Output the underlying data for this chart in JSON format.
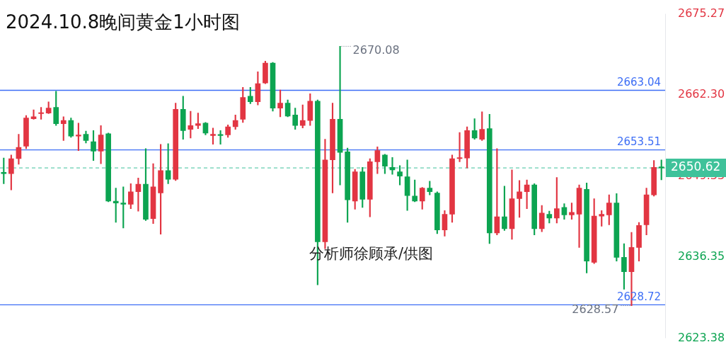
{
  "chart_data": {
    "type": "candlestick",
    "title": "2024.10.8晚间黄金1小时图",
    "categories": [
      null,
      null,
      null,
      null,
      null,
      null,
      null,
      null,
      null,
      null,
      null,
      null,
      null,
      null,
      null,
      null,
      null,
      null,
      null,
      null,
      null,
      null,
      null,
      null,
      null,
      null,
      null,
      null,
      null,
      null,
      null,
      null,
      null,
      null,
      null,
      null,
      null,
      null,
      null,
      null,
      null,
      null,
      null,
      null,
      null,
      null,
      null,
      null,
      null,
      null,
      null,
      null,
      null,
      null,
      null,
      null,
      null,
      null,
      null,
      null,
      null,
      null,
      null,
      null,
      null,
      null,
      null,
      null,
      null,
      null,
      null,
      null,
      null,
      null,
      null,
      null,
      null,
      null,
      null,
      null,
      null,
      null,
      null,
      null,
      null,
      null,
      null,
      null,
      null
    ],
    "ohlc": [
      [
        2649.9,
        2652.2,
        2648.1,
        2649.7
      ],
      [
        2649.7,
        2652.7,
        2647.1,
        2652.1
      ],
      [
        2652.1,
        2656.0,
        2651.2,
        2653.9
      ],
      [
        2654.1,
        2659.0,
        2653.7,
        2658.6
      ],
      [
        2658.5,
        2659.9,
        2658.4,
        2658.8
      ],
      [
        2659.3,
        2660.3,
        2658.4,
        2659.4
      ],
      [
        2659.4,
        2661.2,
        2659.3,
        2660.2
      ],
      [
        2660.3,
        2662.9,
        2657.4,
        2657.7
      ],
      [
        2657.7,
        2658.8,
        2655.0,
        2658.2
      ],
      [
        2658.2,
        2658.6,
        2655.5,
        2655.7
      ],
      [
        2655.7,
        2657.8,
        2653.4,
        2655.9
      ],
      [
        2656.0,
        2656.5,
        2654.6,
        2655.0
      ],
      [
        2654.8,
        2656.6,
        2651.8,
        2653.3
      ],
      [
        2653.3,
        2657.4,
        2651.3,
        2655.9
      ],
      [
        2656.1,
        2656.2,
        2645.2,
        2645.3
      ],
      [
        2645.3,
        2647.4,
        2641.9,
        2645.0
      ],
      [
        2645.0,
        2647.6,
        2641.0,
        2644.8
      ],
      [
        2644.8,
        2648.1,
        2644.1,
        2646.8
      ],
      [
        2646.8,
        2649.0,
        2643.7,
        2648.0
      ],
      [
        2648.0,
        2653.7,
        2642.2,
        2642.4
      ],
      [
        2642.5,
        2651.3,
        2641.7,
        2647.6
      ],
      [
        2646.6,
        2654.4,
        2640.0,
        2650.2
      ],
      [
        2650.2,
        2654.5,
        2648.1,
        2648.8
      ],
      [
        2648.8,
        2661.0,
        2648.6,
        2660.0
      ],
      [
        2660.0,
        2662.1,
        2655.2,
        2656.6
      ],
      [
        2656.8,
        2659.7,
        2655.4,
        2657.4
      ],
      [
        2657.4,
        2659.4,
        2656.9,
        2657.7
      ],
      [
        2657.8,
        2657.9,
        2655.9,
        2656.2
      ],
      [
        2655.8,
        2657.0,
        2654.4,
        2656.0
      ],
      [
        2655.9,
        2656.6,
        2654.4,
        2655.8
      ],
      [
        2655.9,
        2657.5,
        2655.5,
        2657.2
      ],
      [
        2657.2,
        2659.1,
        2656.8,
        2658.2
      ],
      [
        2658.4,
        2663.5,
        2657.9,
        2661.9
      ],
      [
        2662.1,
        2663.5,
        2660.9,
        2661.2
      ],
      [
        2661.2,
        2666.0,
        2660.7,
        2664.1
      ],
      [
        2664.2,
        2667.7,
        2664.1,
        2667.4
      ],
      [
        2667.4,
        2667.5,
        2659.7,
        2660.2
      ],
      [
        2660.2,
        2663.1,
        2658.8,
        2661.0
      ],
      [
        2661.0,
        2661.5,
        2658.8,
        2658.9
      ],
      [
        2659.1,
        2660.2,
        2656.8,
        2657.4
      ],
      [
        2657.4,
        2660.7,
        2657.0,
        2658.2
      ],
      [
        2658.2,
        2662.5,
        2657.4,
        2661.3
      ],
      [
        2661.3,
        2661.5,
        2631.9,
        2638.8
      ],
      [
        2638.8,
        2655.2,
        2637.7,
        2651.9
      ],
      [
        2651.9,
        2661.0,
        2646.6,
        2658.4
      ],
      [
        2658.4,
        2670.08,
        2647.9,
        2653.1
      ],
      [
        2653.2,
        2653.8,
        2641.9,
        2645.5
      ],
      [
        2645.3,
        2650.4,
        2644.0,
        2650.0
      ],
      [
        2650.0,
        2650.7,
        2644.3,
        2645.6
      ],
      [
        2645.6,
        2652.1,
        2642.8,
        2651.6
      ],
      [
        2651.6,
        2654.0,
        2649.7,
        2653.4
      ],
      [
        2652.7,
        2652.8,
        2649.7,
        2650.9
      ],
      [
        2650.7,
        2652.3,
        2649.6,
        2650.3
      ],
      [
        2650.0,
        2651.0,
        2647.9,
        2649.3
      ],
      [
        2649.2,
        2651.9,
        2643.8,
        2646.2
      ],
      [
        2646.1,
        2648.7,
        2645.2,
        2645.3
      ],
      [
        2645.3,
        2647.5,
        2644.0,
        2647.4
      ],
      [
        2647.4,
        2648.5,
        2646.3,
        2646.8
      ],
      [
        2646.6,
        2646.8,
        2640.1,
        2640.7
      ],
      [
        2640.7,
        2643.8,
        2639.7,
        2643.2
      ],
      [
        2643.2,
        2652.7,
        2641.9,
        2652.1
      ],
      [
        2652.1,
        2656.3,
        2651.6,
        2652.2
      ],
      [
        2652.2,
        2657.2,
        2650.6,
        2656.6
      ],
      [
        2656.6,
        2658.5,
        2655.2,
        2655.4
      ],
      [
        2655.2,
        2659.6,
        2655.0,
        2656.8
      ],
      [
        2656.9,
        2659.2,
        2638.5,
        2640.2
      ],
      [
        2640.2,
        2653.7,
        2639.9,
        2642.8
      ],
      [
        2642.8,
        2647.7,
        2640.6,
        2640.9
      ],
      [
        2640.9,
        2650.3,
        2639.2,
        2645.7
      ],
      [
        2645.7,
        2648.6,
        2642.7,
        2646.8
      ],
      [
        2646.8,
        2648.7,
        2644.1,
        2647.9
      ],
      [
        2647.9,
        2648.1,
        2639.9,
        2640.9
      ],
      [
        2640.9,
        2644.6,
        2640.4,
        2643.4
      ],
      [
        2643.2,
        2643.7,
        2641.8,
        2642.6
      ],
      [
        2642.6,
        2649.1,
        2641.8,
        2644.1
      ],
      [
        2644.3,
        2644.9,
        2642.4,
        2643.1
      ],
      [
        2643.1,
        2645.0,
        2642.4,
        2643.5
      ],
      [
        2643.2,
        2647.9,
        2637.9,
        2647.4
      ],
      [
        2647.2,
        2648.2,
        2633.8,
        2635.7
      ],
      [
        2635.5,
        2645.7,
        2635.3,
        2642.9
      ],
      [
        2642.9,
        2643.8,
        2641.3,
        2643.2
      ],
      [
        2643.1,
        2646.3,
        2641.5,
        2645.0
      ],
      [
        2645.0,
        2646.5,
        2635.7,
        2636.3
      ],
      [
        2636.3,
        2638.5,
        2631.2,
        2634.0
      ],
      [
        2634.0,
        2640.3,
        2628.57,
        2637.9
      ],
      [
        2637.9,
        2641.9,
        2635.7,
        2641.4
      ],
      [
        2641.5,
        2647.4,
        2639.9,
        2646.3
      ],
      [
        2646.3,
        2651.8,
        2646.1,
        2650.7
      ],
      [
        2650.8,
        2651.9,
        2648.7,
        2650.62
      ]
    ],
    "colors": [
      "#0ca451",
      "#e23542",
      "#e23542",
      "#e23542",
      "#e23542",
      "#e23542",
      "#e23542",
      "#0ca451",
      "#e23542",
      "#0ca451",
      "#e23542",
      "#0ca451",
      "#0ca451",
      "#e23542",
      "#0ca451",
      "#0ca451",
      "#0ca451",
      "#e23542",
      "#e23542",
      "#0ca451",
      "#e23542",
      "#e23542",
      "#0ca451",
      "#e23542",
      "#0ca451",
      "#e23542",
      "#e23542",
      "#0ca451",
      "#e23542",
      "#0ca451",
      "#e23542",
      "#e23542",
      "#e23542",
      "#0ca451",
      "#e23542",
      "#e23542",
      "#0ca451",
      "#e23542",
      "#0ca451",
      "#0ca451",
      "#e23542",
      "#e23542",
      "#0ca451",
      "#e23542",
      "#e23542",
      "#0ca451",
      "#0ca451",
      "#e23542",
      "#0ca451",
      "#e23542",
      "#e23542",
      "#0ca451",
      "#0ca451",
      "#0ca451",
      "#0ca451",
      "#0ca451",
      "#e23542",
      "#0ca451",
      "#0ca451",
      "#e23542",
      "#e23542",
      "#e23542",
      "#e23542",
      "#0ca451",
      "#e23542",
      "#0ca451",
      "#e23542",
      "#0ca451",
      "#e23542",
      "#e23542",
      "#e23542",
      "#0ca451",
      "#e23542",
      "#0ca451",
      "#e23542",
      "#0ca451",
      "#e23542",
      "#e23542",
      "#0ca451",
      "#e23542",
      "#e23542",
      "#e23542",
      "#0ca451",
      "#0ca451",
      "#e23542",
      "#e23542",
      "#e23542",
      "#e23542",
      "#0ca451"
    ],
    "ylim": [
      2623.38,
      2675.27
    ],
    "yticks": [
      2623.38,
      2636.35,
      2649.33,
      {
        "value": 2662.3,
        "label": "2662.30"
      },
      2675.27
    ],
    "tick_labels": "y",
    "ref_lines": [
      {
        "axis": "y",
        "value": 2663.04,
        "label": "2663.04",
        "color": "#3d6ef5"
      },
      {
        "axis": "y",
        "value": 2653.51,
        "label": "2653.51",
        "color": "#3d6ef5"
      },
      {
        "axis": "y",
        "value": 2628.72,
        "label": "2628.72",
        "color": "#3d6ef5"
      },
      {
        "axis": "y",
        "value": 2650.62,
        "label": "2650.62",
        "color": "#3fc29a",
        "line_style": "dashed"
      }
    ],
    "annotations": [
      "2670.08",
      "2628.57",
      "分析师徐顾承/供图"
    ]
  }
}
